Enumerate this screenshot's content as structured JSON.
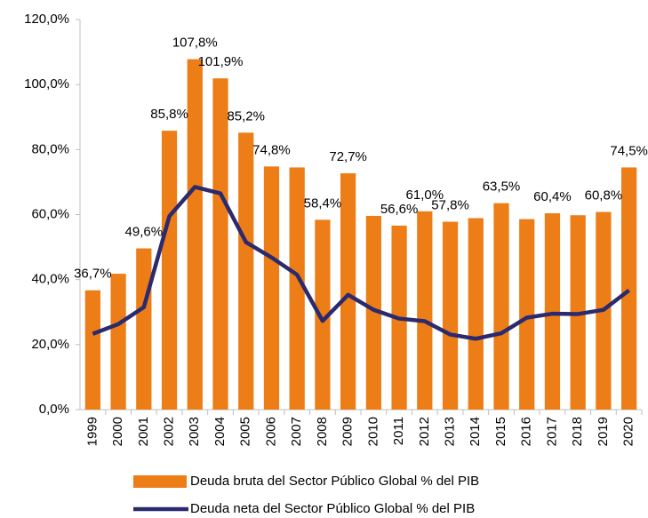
{
  "chart_data": {
    "type": "bar_line",
    "categories": [
      "1999",
      "2000",
      "2001",
      "2002",
      "2003",
      "2004",
      "2005",
      "2006",
      "2007",
      "2008",
      "2009",
      "2010",
      "2011",
      "2012",
      "2013",
      "2014",
      "2015",
      "2016",
      "2017",
      "2018",
      "2019",
      "2020"
    ],
    "series": [
      {
        "name": "Deuda bruta del Sector Público Global % del PIB",
        "type": "bar",
        "color": "#ed7d16",
        "values": [
          36.7,
          41.8,
          49.6,
          85.8,
          107.8,
          101.9,
          85.2,
          74.8,
          74.5,
          58.4,
          72.7,
          59.6,
          56.6,
          61.0,
          57.8,
          58.9,
          63.5,
          58.6,
          60.4,
          59.8,
          60.8,
          74.5
        ],
        "value_labels": [
          "36,7%",
          null,
          "49,6%",
          "85,8%",
          "107,8%",
          "101,9%",
          "85,2%",
          "74,8%",
          null,
          "58,4%",
          "72,7%",
          null,
          "56,6%",
          "61,0%",
          "57,8%",
          null,
          "63,5%",
          null,
          "60,4%",
          null,
          "60,8%",
          "74,5%"
        ]
      },
      {
        "name": "Deuda neta del Sector Público Global % del PIB",
        "type": "line",
        "color": "#2b2a6e",
        "values": [
          23.3,
          26.3,
          31.5,
          59.5,
          68.5,
          66.5,
          51.5,
          46.8,
          41.5,
          27.3,
          35.3,
          30.7,
          28.0,
          27.2,
          23.1,
          21.8,
          23.5,
          28.3,
          29.5,
          29.4,
          30.7,
          36.7
        ]
      }
    ],
    "ylim": [
      0,
      120
    ],
    "yticks": [
      {
        "value": 0,
        "label": "0,0%"
      },
      {
        "value": 20,
        "label": "20,0%"
      },
      {
        "value": 40,
        "label": "40,0%"
      },
      {
        "value": 60,
        "label": "60,0%"
      },
      {
        "value": 80,
        "label": "80,0%"
      },
      {
        "value": 100,
        "label": "100,0%"
      },
      {
        "value": 120,
        "label": "120,0%"
      }
    ]
  }
}
